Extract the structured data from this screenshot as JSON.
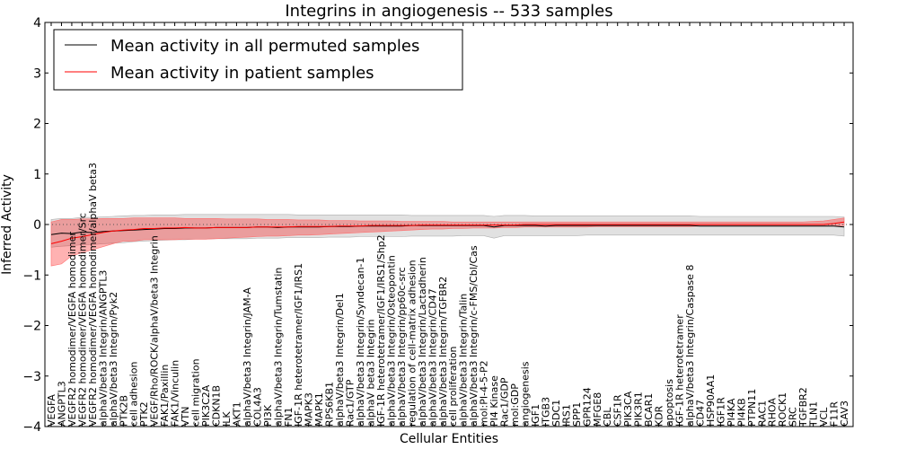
{
  "chart_data": {
    "type": "line",
    "title": "Integrins in angiogenesis -- 533 samples",
    "xlabel": "Cellular Entities",
    "ylabel": "Inferred Activity",
    "ylim": [
      -4,
      4
    ],
    "yticks": [
      -4,
      -3,
      -2,
      -1,
      0,
      1,
      2,
      3,
      4
    ],
    "grid": false,
    "legend_position": "upper-left",
    "baseline_y": 0,
    "categories": [
      "VEGFA",
      "ANGPTL3",
      "VEGFR2 homodimer/VEGFA homodimer",
      "VEGFR2 homodimer/VEGFA homodimer/Src",
      "VEGFR2 homodimer/VEGFA homodimer/alphaV beta3",
      "alphaV/beta3 Integrin/ANGPTL3",
      "alphaV/beta3 Integrin/Pyk2",
      "PTK2B",
      "cell adhesion",
      "PTK2",
      "VEGF/Rho/ROCK/alphaV/beta3 Integrin",
      "FAK1/Paxillin",
      "FAK1/Vinculin",
      "VTN",
      "cell migration",
      "PIK3C2A",
      "CDKN1B",
      "ILK",
      "AKT1",
      "alphaV/beta3 Integrin/JAM-A",
      "COL4A3",
      "PI3K",
      "alphaV/beta3 Integrin/Tumstatin",
      "FN1",
      "IGF-1R heterotetramer/IGF1/IRS1",
      "MAPK3",
      "MAPK1",
      "RPS6KB1",
      "alphaV/beta3 Integrin/Del1",
      "Rac1/GTP",
      "alphaV/beta3 Integrin/Syndecan-1",
      "alphaV beta3 Integrin",
      "IGF-1R heterotetramer/IGF1/IRS1/Shp2",
      "alphaV/beta3 Integrin/Osteopontin",
      "alphaV/beta3 Integrin/pp60c-src",
      "regulation of cell-matrix adhesion",
      "alphaV/beta3 Integrin/Lactadherin",
      "alphaV/beta3 Integrin/CD47",
      "alphaV/beta3 Integrin/TGFBR2",
      "cell proliferation",
      "alphaV/beta3 Integrin/Talin",
      "alphaV/beta3 Integrin/c-FMS/Cbl/Cas",
      "mol:PI-4-5-P2",
      "PI4 Kinase",
      "Rac1/GDP",
      "mol:GDP",
      "angiogenesis",
      "IGF1",
      "ITGB3",
      "SDC1",
      "IRS1",
      "SPP1",
      "GPR124",
      "MFGE8",
      "CBL",
      "CSF1R",
      "PIK3CA",
      "PIK3R1",
      "BCAR1",
      "KDR",
      "apoptosis",
      "IGF-1R heterotetramer",
      "alphaV/beta3 Integrin/Caspase 8",
      "CD47",
      "HSP90AA1",
      "IGF1R",
      "PI4KA",
      "PI4KB",
      "PTPN11",
      "RAC1",
      "RHOA",
      "ROCK1",
      "SRC",
      "TGFBR2",
      "TLN1",
      "VCL",
      "F11R",
      "CAV3"
    ],
    "series": [
      {
        "name": "Mean activity in all permuted samples",
        "color": "#000000",
        "values": [
          -0.2,
          -0.17,
          -0.18,
          -0.15,
          -0.16,
          -0.14,
          -0.13,
          -0.12,
          -0.11,
          -0.1,
          -0.09,
          -0.08,
          -0.08,
          -0.07,
          -0.07,
          -0.07,
          -0.06,
          -0.06,
          -0.06,
          -0.06,
          -0.05,
          -0.05,
          -0.06,
          -0.05,
          -0.05,
          -0.05,
          -0.05,
          -0.04,
          -0.04,
          -0.04,
          -0.03,
          -0.03,
          -0.03,
          -0.03,
          -0.03,
          -0.02,
          -0.02,
          -0.02,
          -0.02,
          -0.02,
          -0.02,
          -0.02,
          -0.02,
          -0.05,
          -0.02,
          -0.02,
          -0.02,
          -0.02,
          -0.03,
          -0.02,
          -0.02,
          -0.02,
          -0.02,
          -0.02,
          -0.02,
          -0.02,
          -0.02,
          -0.02,
          -0.02,
          -0.02,
          -0.02,
          -0.02,
          -0.02,
          -0.03,
          -0.03,
          -0.03,
          -0.03,
          -0.03,
          -0.03,
          -0.03,
          -0.03,
          -0.03,
          -0.03,
          -0.03,
          -0.03,
          -0.03,
          -0.03,
          -0.05
        ],
        "band_lower": [
          -0.45,
          -0.43,
          -0.42,
          -0.4,
          -0.4,
          -0.38,
          -0.37,
          -0.36,
          -0.34,
          -0.33,
          -0.32,
          -0.31,
          -0.3,
          -0.3,
          -0.29,
          -0.29,
          -0.28,
          -0.28,
          -0.28,
          -0.28,
          -0.27,
          -0.27,
          -0.27,
          -0.26,
          -0.26,
          -0.26,
          -0.26,
          -0.25,
          -0.25,
          -0.25,
          -0.24,
          -0.24,
          -0.24,
          -0.24,
          -0.24,
          -0.23,
          -0.23,
          -0.23,
          -0.23,
          -0.23,
          -0.22,
          -0.22,
          -0.22,
          -0.27,
          -0.22,
          -0.22,
          -0.22,
          -0.22,
          -0.22,
          -0.22,
          -0.22,
          -0.22,
          -0.21,
          -0.21,
          -0.21,
          -0.21,
          -0.21,
          -0.21,
          -0.21,
          -0.21,
          -0.21,
          -0.21,
          -0.21,
          -0.21,
          -0.21,
          -0.21,
          -0.21,
          -0.21,
          -0.21,
          -0.21,
          -0.21,
          -0.21,
          -0.21,
          -0.21,
          -0.21,
          -0.21,
          -0.21,
          -0.23
        ],
        "band_upper": [
          0.1,
          0.12,
          0.12,
          0.14,
          0.14,
          0.15,
          0.16,
          0.17,
          0.18,
          0.18,
          0.19,
          0.19,
          0.19,
          0.2,
          0.2,
          0.2,
          0.2,
          0.2,
          0.2,
          0.2,
          0.2,
          0.2,
          0.2,
          0.2,
          0.19,
          0.19,
          0.19,
          0.19,
          0.19,
          0.19,
          0.19,
          0.19,
          0.19,
          0.19,
          0.19,
          0.18,
          0.18,
          0.18,
          0.18,
          0.18,
          0.18,
          0.18,
          0.18,
          0.16,
          0.18,
          0.18,
          0.18,
          0.17,
          0.17,
          0.17,
          0.17,
          0.17,
          0.17,
          0.17,
          0.17,
          0.17,
          0.17,
          0.17,
          0.17,
          0.17,
          0.17,
          0.17,
          0.17,
          0.16,
          0.16,
          0.16,
          0.16,
          0.16,
          0.16,
          0.16,
          0.16,
          0.16,
          0.16,
          0.16,
          0.16,
          0.16,
          0.16,
          0.15
        ]
      },
      {
        "name": "Mean activity in patient samples",
        "color": "#ff0000",
        "values": [
          -0.38,
          -0.33,
          -0.27,
          -0.24,
          -0.2,
          -0.16,
          -0.13,
          -0.11,
          -0.1,
          -0.08,
          -0.08,
          -0.07,
          -0.07,
          -0.06,
          -0.07,
          -0.07,
          -0.06,
          -0.06,
          -0.06,
          -0.06,
          -0.05,
          -0.05,
          -0.05,
          -0.05,
          -0.04,
          -0.04,
          -0.04,
          -0.04,
          -0.03,
          -0.03,
          -0.03,
          -0.02,
          -0.02,
          -0.02,
          -0.02,
          -0.02,
          -0.01,
          -0.01,
          -0.01,
          -0.01,
          -0.01,
          -0.01,
          -0.01,
          -0.01,
          -0.01,
          -0.01,
          0.0,
          0.0,
          0.0,
          0.0,
          0.0,
          0.0,
          0.0,
          0.0,
          0.0,
          0.0,
          0.0,
          0.0,
          0.0,
          0.0,
          0.0,
          0.0,
          0.0,
          0.0,
          0.0,
          0.0,
          0.0,
          0.0,
          0.0,
          0.0,
          0.0,
          0.0,
          0.0,
          0.0,
          0.0,
          0.0,
          0.02,
          0.05
        ],
        "band_lower": [
          -0.82,
          -0.78,
          -0.62,
          -0.56,
          -0.5,
          -0.44,
          -0.38,
          -0.33,
          -0.33,
          -0.3,
          -0.3,
          -0.3,
          -0.3,
          -0.29,
          -0.29,
          -0.29,
          -0.28,
          -0.27,
          -0.26,
          -0.25,
          -0.24,
          -0.23,
          -0.23,
          -0.22,
          -0.21,
          -0.21,
          -0.2,
          -0.19,
          -0.18,
          -0.17,
          -0.16,
          -0.15,
          -0.14,
          -0.13,
          -0.12,
          -0.11,
          -0.1,
          -0.09,
          -0.09,
          -0.08,
          -0.08,
          -0.07,
          -0.07,
          -0.07,
          -0.06,
          -0.06,
          -0.05,
          -0.05,
          -0.05,
          -0.05,
          -0.05,
          -0.05,
          -0.05,
          -0.04,
          -0.04,
          -0.04,
          -0.04,
          -0.04,
          -0.04,
          -0.04,
          -0.04,
          -0.04,
          -0.04,
          -0.03,
          -0.03,
          -0.03,
          -0.03,
          -0.03,
          -0.03,
          -0.03,
          -0.03,
          -0.03,
          -0.03,
          -0.03,
          -0.03,
          -0.03,
          -0.03,
          -0.02
        ],
        "band_upper": [
          0.05,
          0.1,
          0.1,
          0.11,
          0.11,
          0.12,
          0.12,
          0.12,
          0.13,
          0.13,
          0.13,
          0.13,
          0.13,
          0.12,
          0.12,
          0.12,
          0.12,
          0.11,
          0.11,
          0.11,
          0.11,
          0.1,
          0.1,
          0.1,
          0.09,
          0.09,
          0.09,
          0.08,
          0.08,
          0.08,
          0.07,
          0.07,
          0.07,
          0.07,
          0.06,
          0.06,
          0.06,
          0.06,
          0.06,
          0.05,
          0.05,
          0.05,
          0.05,
          0.05,
          0.05,
          0.05,
          0.05,
          0.05,
          0.05,
          0.05,
          0.05,
          0.05,
          0.05,
          0.05,
          0.05,
          0.05,
          0.05,
          0.05,
          0.05,
          0.05,
          0.05,
          0.05,
          0.05,
          0.05,
          0.05,
          0.05,
          0.05,
          0.05,
          0.05,
          0.05,
          0.05,
          0.05,
          0.05,
          0.05,
          0.06,
          0.07,
          0.1,
          0.13
        ]
      }
    ]
  }
}
